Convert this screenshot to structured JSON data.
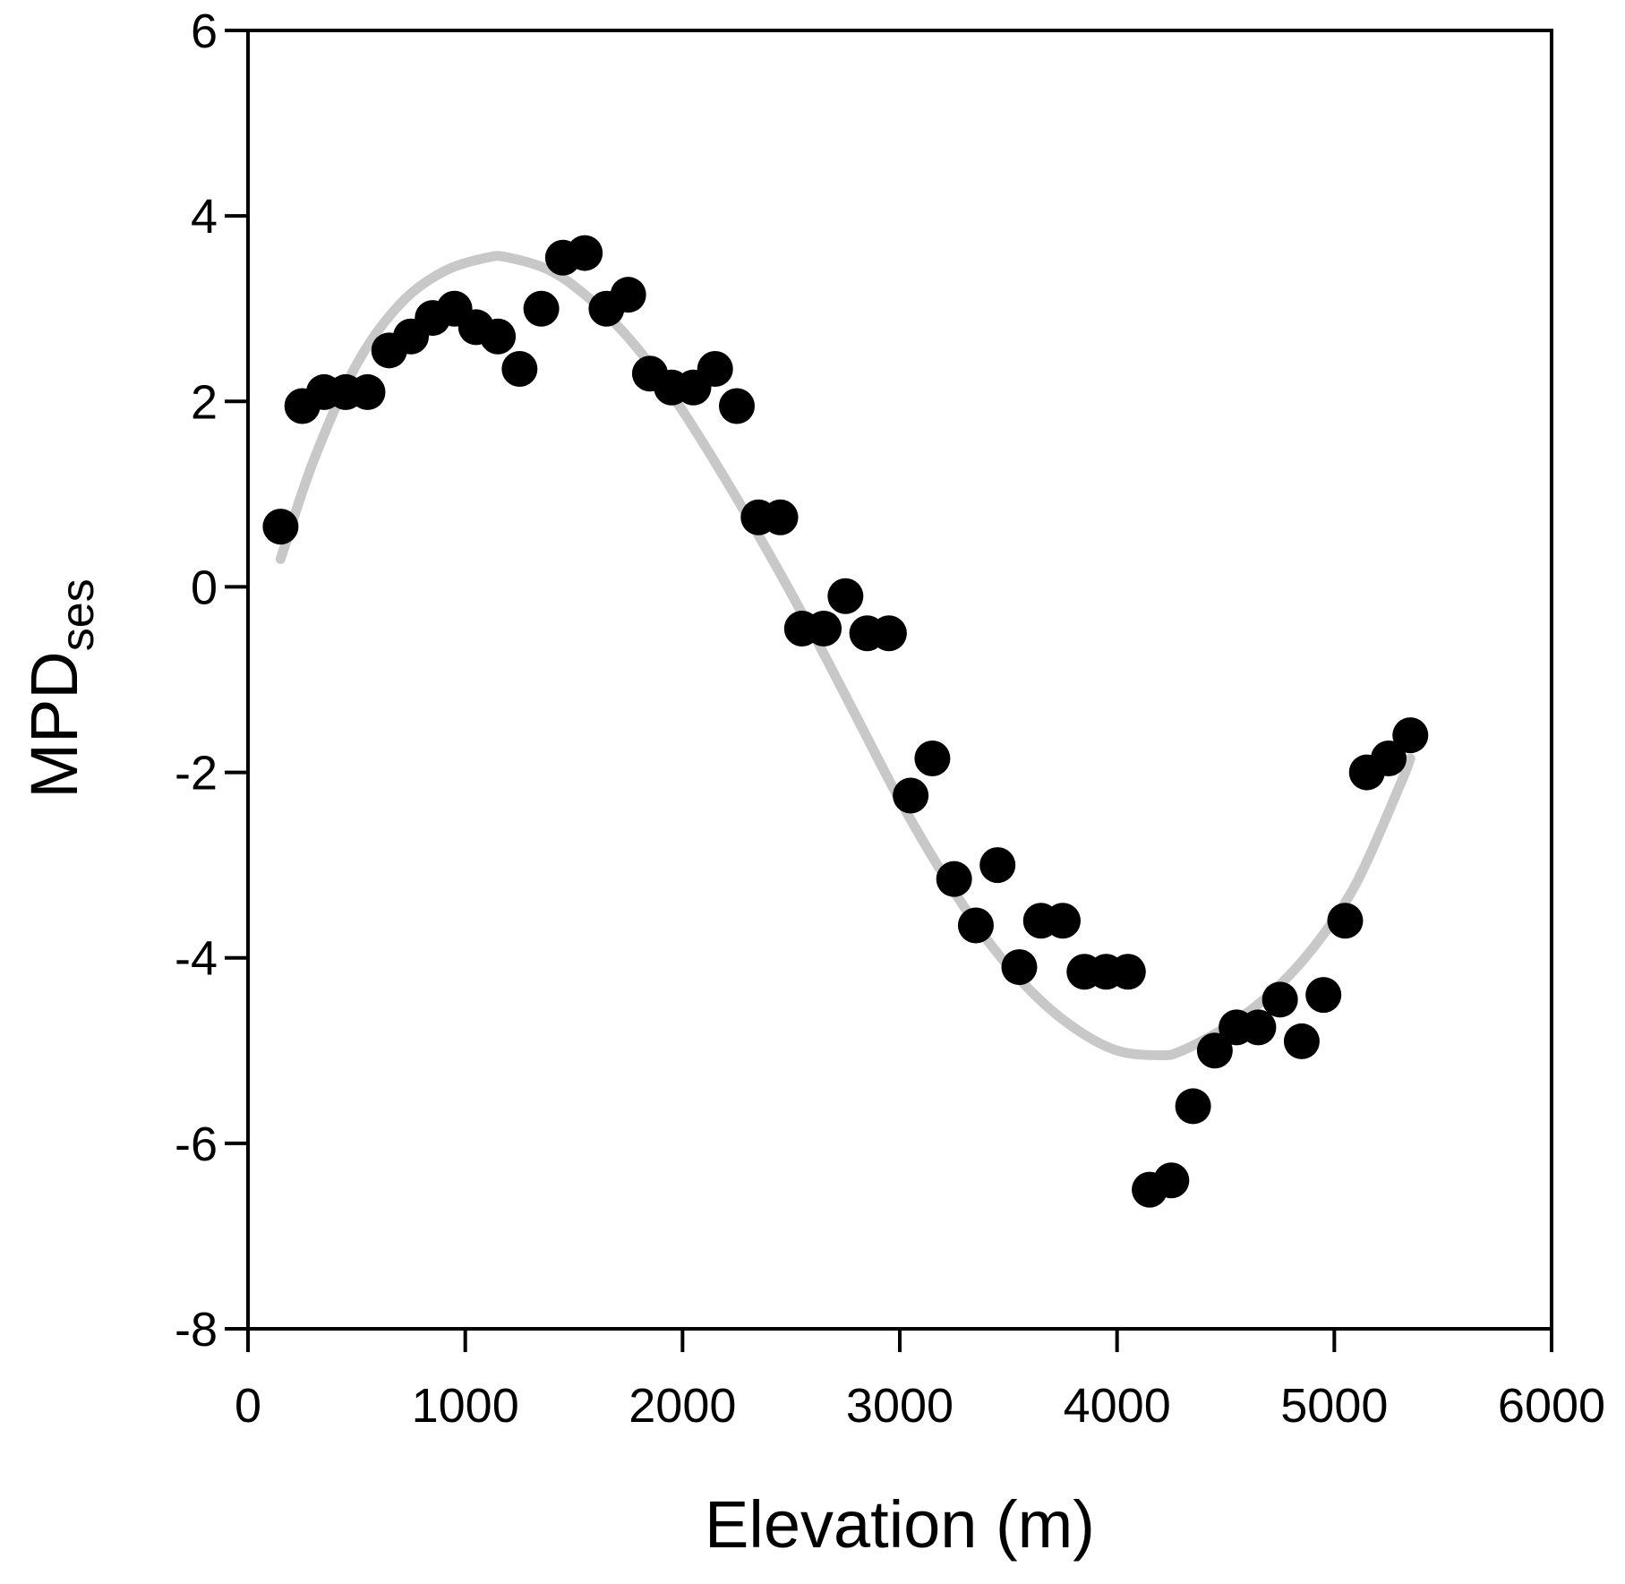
{
  "chart_data": {
    "type": "scatter",
    "xlabel": "Elevation (m)",
    "ylabel": {
      "main": "MPD",
      "subscript": "ses"
    },
    "xlim": [
      0,
      6000
    ],
    "ylim": [
      -8,
      6
    ],
    "xticks": [
      0,
      1000,
      2000,
      3000,
      4000,
      5000,
      6000
    ],
    "yticks": [
      -8,
      -6,
      -4,
      -2,
      0,
      2,
      4,
      6
    ],
    "grid": false,
    "legend": "none",
    "colors": {
      "points": "#000000",
      "fit_line": "#c8c8c8",
      "axes": "#000000"
    },
    "series": [
      {
        "kind": "points",
        "x": [
          150,
          250,
          350,
          450,
          550,
          650,
          750,
          850,
          950,
          1050,
          1150,
          1250,
          1350,
          1450,
          1550,
          1650,
          1750,
          1850,
          1950,
          2050,
          2150,
          2250,
          2350,
          2450,
          2550,
          2650,
          2750,
          2850,
          2950,
          3050,
          3150,
          3250,
          3350,
          3450,
          3550,
          3650,
          3750,
          3850,
          3950,
          4050,
          4150,
          4250,
          4350,
          4450,
          4550,
          4650,
          4750,
          4850,
          4950,
          5050,
          5150,
          5250,
          5350
        ],
        "y": [
          0.65,
          1.95,
          2.1,
          2.1,
          2.1,
          2.55,
          2.7,
          2.9,
          3.0,
          2.8,
          2.7,
          2.35,
          3.0,
          3.55,
          3.6,
          3.0,
          3.15,
          2.3,
          2.15,
          2.15,
          2.35,
          1.95,
          0.75,
          0.75,
          -0.45,
          -0.45,
          -0.1,
          -0.5,
          -0.5,
          -2.25,
          -1.85,
          -3.15,
          -3.65,
          -3.0,
          -4.1,
          -3.6,
          -3.6,
          -4.15,
          -4.15,
          -4.15,
          -6.5,
          -6.4,
          -5.6,
          -5.0,
          -4.75,
          -4.75,
          -4.45,
          -4.9,
          -4.4,
          -3.6,
          -2.0,
          -1.85,
          -1.6
        ]
      },
      {
        "kind": "fit",
        "x": [
          150,
          300,
          500,
          700,
          900,
          1100,
          1200,
          1400,
          1600,
          1800,
          2000,
          2200,
          2400,
          2600,
          2800,
          3000,
          3200,
          3400,
          3600,
          3800,
          4000,
          4200,
          4300,
          4500,
          4700,
          4900,
          5100,
          5300,
          5350
        ],
        "y": [
          0.3,
          1.35,
          2.4,
          3.05,
          3.4,
          3.55,
          3.55,
          3.4,
          3.05,
          2.55,
          1.9,
          1.15,
          0.35,
          -0.5,
          -1.4,
          -2.3,
          -3.1,
          -3.8,
          -4.35,
          -4.75,
          -5.0,
          -5.05,
          -5.0,
          -4.75,
          -4.4,
          -3.9,
          -3.2,
          -2.15,
          -1.85
        ]
      }
    ]
  }
}
